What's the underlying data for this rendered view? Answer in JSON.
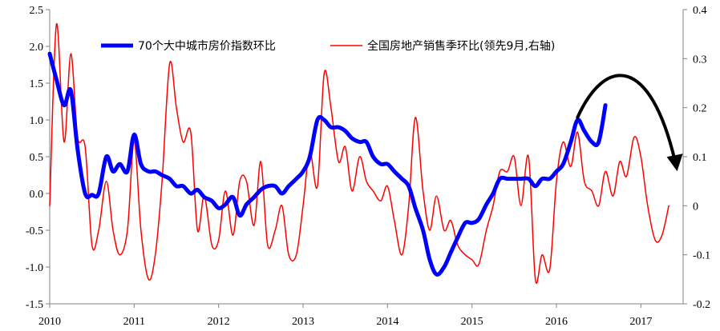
{
  "chart_data": {
    "type": "line",
    "legend_position": "top",
    "grid": false,
    "x_axis": {
      "range": [
        2010.0,
        2017.5
      ],
      "tick_labels": [
        "2010",
        "2011",
        "2012",
        "2013",
        "2014",
        "2015",
        "2016",
        "2017"
      ],
      "tick_values": [
        2010,
        2011,
        2012,
        2013,
        2014,
        2015,
        2016,
        2017
      ]
    },
    "y_left": {
      "range": [
        -1.5,
        2.5
      ],
      "tick_values": [
        -1.5,
        -1.0,
        -0.5,
        0.0,
        0.5,
        1.0,
        1.5,
        2.0,
        2.5
      ],
      "tick_labels": [
        "-1.5",
        "-1.0",
        "-0.5",
        "0.0",
        "0.5",
        "1.0",
        "1.5",
        "2.0",
        "2.5"
      ]
    },
    "y_right": {
      "range": [
        -0.2,
        0.4
      ],
      "tick_values": [
        -0.2,
        -0.1,
        0,
        0.1,
        0.2,
        0.3,
        0.4
      ],
      "tick_labels": [
        "-0.2",
        "-0.1",
        "0",
        "0.1",
        "0.2",
        "0.3",
        "0.4"
      ]
    },
    "series": [
      {
        "name": "70个大中城市房价指数环比",
        "axis": "left",
        "color": "#0000ff",
        "points": [
          [
            2010.0,
            1.9
          ],
          [
            2010.08,
            1.55
          ],
          [
            2010.17,
            1.2
          ],
          [
            2010.25,
            1.4
          ],
          [
            2010.33,
            0.6
          ],
          [
            2010.42,
            0.0
          ],
          [
            2010.5,
            -0.02
          ],
          [
            2010.58,
            0.0
          ],
          [
            2010.67,
            0.5
          ],
          [
            2010.75,
            0.3
          ],
          [
            2010.83,
            0.4
          ],
          [
            2010.92,
            0.3
          ],
          [
            2011.0,
            0.8
          ],
          [
            2011.08,
            0.4
          ],
          [
            2011.17,
            0.3
          ],
          [
            2011.25,
            0.3
          ],
          [
            2011.33,
            0.25
          ],
          [
            2011.42,
            0.2
          ],
          [
            2011.5,
            0.1
          ],
          [
            2011.58,
            0.1
          ],
          [
            2011.67,
            0.0
          ],
          [
            2011.75,
            0.05
          ],
          [
            2011.83,
            -0.05
          ],
          [
            2011.92,
            -0.1
          ],
          [
            2012.0,
            -0.2
          ],
          [
            2012.08,
            -0.15
          ],
          [
            2012.17,
            -0.05
          ],
          [
            2012.25,
            -0.3
          ],
          [
            2012.33,
            -0.15
          ],
          [
            2012.42,
            -0.05
          ],
          [
            2012.5,
            0.05
          ],
          [
            2012.58,
            0.1
          ],
          [
            2012.67,
            0.1
          ],
          [
            2012.75,
            0.0
          ],
          [
            2012.83,
            0.1
          ],
          [
            2012.92,
            0.2
          ],
          [
            2013.0,
            0.3
          ],
          [
            2013.08,
            0.5
          ],
          [
            2013.17,
            1.0
          ],
          [
            2013.25,
            1.0
          ],
          [
            2013.33,
            0.9
          ],
          [
            2013.42,
            0.9
          ],
          [
            2013.5,
            0.85
          ],
          [
            2013.58,
            0.75
          ],
          [
            2013.67,
            0.7
          ],
          [
            2013.75,
            0.7
          ],
          [
            2013.83,
            0.5
          ],
          [
            2013.92,
            0.4
          ],
          [
            2014.0,
            0.4
          ],
          [
            2014.08,
            0.3
          ],
          [
            2014.17,
            0.2
          ],
          [
            2014.25,
            0.1
          ],
          [
            2014.33,
            -0.2
          ],
          [
            2014.42,
            -0.5
          ],
          [
            2014.5,
            -0.9
          ],
          [
            2014.58,
            -1.1
          ],
          [
            2014.67,
            -1.0
          ],
          [
            2014.75,
            -0.8
          ],
          [
            2014.83,
            -0.6
          ],
          [
            2014.92,
            -0.4
          ],
          [
            2015.0,
            -0.4
          ],
          [
            2015.08,
            -0.35
          ],
          [
            2015.17,
            -0.15
          ],
          [
            2015.25,
            0.0
          ],
          [
            2015.33,
            0.2
          ],
          [
            2015.42,
            0.2
          ],
          [
            2015.5,
            0.2
          ],
          [
            2015.58,
            0.2
          ],
          [
            2015.67,
            0.2
          ],
          [
            2015.75,
            0.1
          ],
          [
            2015.83,
            0.2
          ],
          [
            2015.92,
            0.2
          ],
          [
            2016.0,
            0.3
          ],
          [
            2016.08,
            0.4
          ],
          [
            2016.17,
            0.7
          ],
          [
            2016.25,
            1.0
          ],
          [
            2016.33,
            0.85
          ],
          [
            2016.42,
            0.7
          ],
          [
            2016.5,
            0.7
          ],
          [
            2016.58,
            1.2
          ]
        ]
      },
      {
        "name": "全国房地产销售季环比(领先9月,右轴)",
        "axis": "right",
        "color": "#ff0000",
        "points": [
          [
            2010.0,
            0.0
          ],
          [
            2010.08,
            0.37
          ],
          [
            2010.17,
            0.13
          ],
          [
            2010.25,
            0.31
          ],
          [
            2010.33,
            0.14
          ],
          [
            2010.42,
            0.12
          ],
          [
            2010.5,
            -0.08
          ],
          [
            2010.58,
            -0.05
          ],
          [
            2010.67,
            0.05
          ],
          [
            2010.75,
            -0.05
          ],
          [
            2010.83,
            -0.1
          ],
          [
            2010.92,
            -0.05
          ],
          [
            2011.0,
            0.13
          ],
          [
            2011.08,
            -0.05
          ],
          [
            2011.17,
            -0.15
          ],
          [
            2011.25,
            -0.1
          ],
          [
            2011.33,
            0.05
          ],
          [
            2011.42,
            0.29
          ],
          [
            2011.5,
            0.2
          ],
          [
            2011.58,
            0.13
          ],
          [
            2011.67,
            0.15
          ],
          [
            2011.75,
            -0.05
          ],
          [
            2011.83,
            0.02
          ],
          [
            2011.92,
            -0.08
          ],
          [
            2012.0,
            -0.07
          ],
          [
            2012.08,
            0.03
          ],
          [
            2012.17,
            -0.06
          ],
          [
            2012.25,
            0.05
          ],
          [
            2012.33,
            0.05
          ],
          [
            2012.42,
            -0.04
          ],
          [
            2012.5,
            0.09
          ],
          [
            2012.58,
            -0.08
          ],
          [
            2012.67,
            -0.05
          ],
          [
            2012.75,
            0.0
          ],
          [
            2012.83,
            -0.1
          ],
          [
            2012.92,
            -0.1
          ],
          [
            2013.0,
            0.0
          ],
          [
            2013.08,
            0.11
          ],
          [
            2013.17,
            0.04
          ],
          [
            2013.25,
            0.27
          ],
          [
            2013.33,
            0.2
          ],
          [
            2013.42,
            0.09
          ],
          [
            2013.5,
            0.12
          ],
          [
            2013.58,
            0.03
          ],
          [
            2013.67,
            0.1
          ],
          [
            2013.75,
            0.05
          ],
          [
            2013.83,
            0.03
          ],
          [
            2013.92,
            0.01
          ],
          [
            2014.0,
            0.04
          ],
          [
            2014.08,
            -0.03
          ],
          [
            2014.17,
            -0.1
          ],
          [
            2014.25,
            0.0
          ],
          [
            2014.33,
            0.18
          ],
          [
            2014.42,
            0.03
          ],
          [
            2014.5,
            -0.05
          ],
          [
            2014.58,
            0.02
          ],
          [
            2014.67,
            -0.05
          ],
          [
            2014.75,
            -0.03
          ],
          [
            2014.83,
            -0.08
          ],
          [
            2014.92,
            -0.1
          ],
          [
            2015.0,
            -0.11
          ],
          [
            2015.08,
            -0.12
          ],
          [
            2015.17,
            -0.05
          ],
          [
            2015.25,
            0.0
          ],
          [
            2015.33,
            0.07
          ],
          [
            2015.42,
            0.07
          ],
          [
            2015.5,
            0.1
          ],
          [
            2015.58,
            0.0
          ],
          [
            2015.67,
            0.1
          ],
          [
            2015.75,
            -0.15
          ],
          [
            2015.83,
            -0.1
          ],
          [
            2015.92,
            -0.13
          ],
          [
            2016.0,
            0.05
          ],
          [
            2016.08,
            0.13
          ],
          [
            2016.17,
            0.08
          ],
          [
            2016.25,
            0.15
          ],
          [
            2016.33,
            0.05
          ],
          [
            2016.42,
            0.03
          ],
          [
            2016.5,
            0.0
          ],
          [
            2016.58,
            0.07
          ],
          [
            2016.67,
            0.02
          ],
          [
            2016.75,
            0.09
          ],
          [
            2016.83,
            0.06
          ],
          [
            2016.92,
            0.14
          ],
          [
            2017.0,
            0.1
          ],
          [
            2017.08,
            0.0
          ],
          [
            2017.17,
            -0.07
          ],
          [
            2017.25,
            -0.06
          ],
          [
            2017.33,
            0.0
          ]
        ]
      }
    ],
    "annotations": [
      {
        "type": "arrow",
        "description": "curved forecast arrow",
        "from": [
          2016.25,
          0.18
        ],
        "peak": [
          2016.85,
          0.27
        ],
        "to": [
          2017.42,
          0.08
        ],
        "axis": "right"
      }
    ]
  }
}
